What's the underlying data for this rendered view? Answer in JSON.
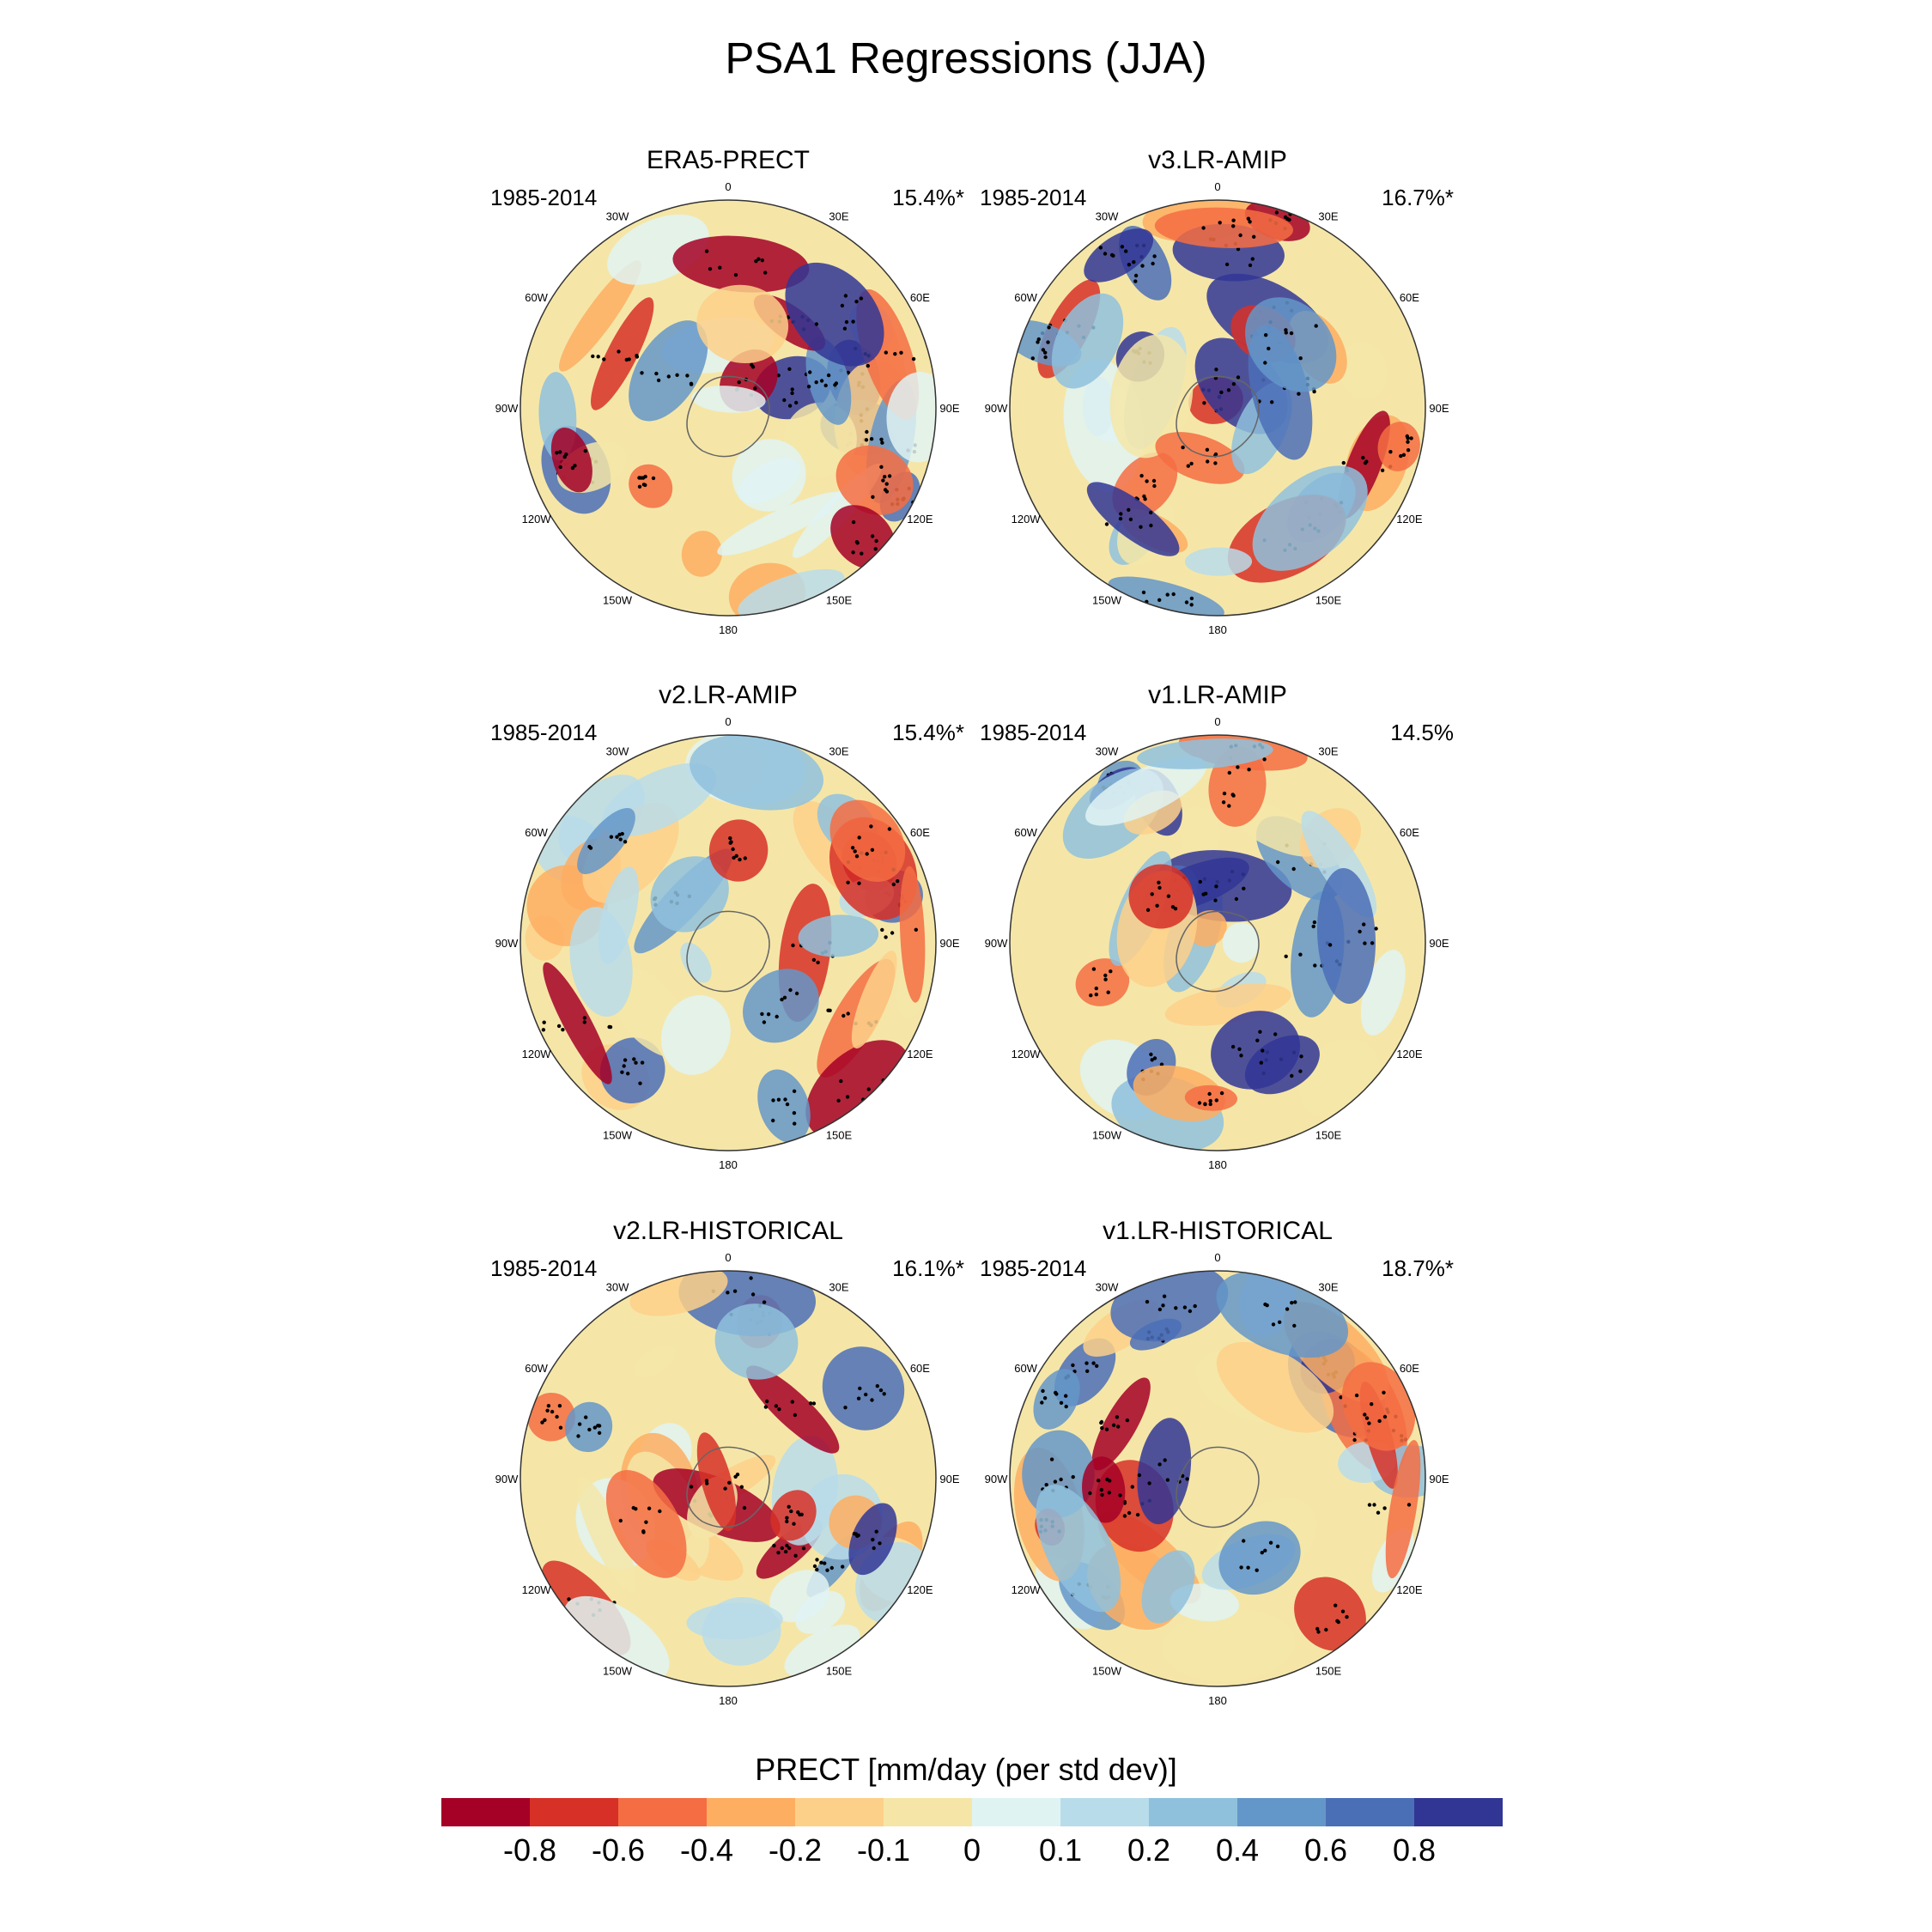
{
  "title": "PSA1 Regressions (JJA)",
  "period": "1985-2014",
  "panels": [
    {
      "title": "ERA5-PRECT",
      "percent": "15.4%*"
    },
    {
      "title": "v3.LR-AMIP",
      "percent": "16.7%*"
    },
    {
      "title": "v2.LR-AMIP",
      "percent": "15.4%*"
    },
    {
      "title": "v1.LR-AMIP",
      "percent": "14.5%"
    },
    {
      "title": "v2.LR-HISTORICAL",
      "percent": "16.1%*"
    },
    {
      "title": "v1.LR-HISTORICAL",
      "percent": "18.7%*"
    }
  ],
  "longitude_labels": [
    "0",
    "30E",
    "60E",
    "90E",
    "120E",
    "150E",
    "180",
    "150W",
    "120W",
    "90W",
    "60W",
    "30W"
  ],
  "colorbar": {
    "title": "PRECT [mm/day (per std dev)]",
    "colors": [
      "#a50026",
      "#d73027",
      "#f46d43",
      "#fdae61",
      "#fdd08a",
      "#f5e6a8",
      "#e0f3f3",
      "#b8dcea",
      "#8fc1dd",
      "#6497c9",
      "#4b6fb7",
      "#313695"
    ],
    "tick_labels": [
      "-0.8",
      "-0.6",
      "-0.4",
      "-0.2",
      "-0.1",
      "0",
      "0.1",
      "0.2",
      "0.4",
      "0.6",
      "0.8"
    ]
  }
}
